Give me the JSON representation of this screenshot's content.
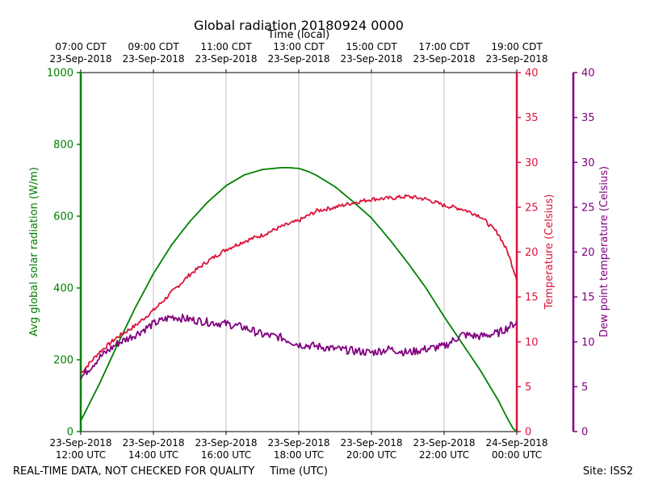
{
  "chart_data": {
    "type": "line",
    "title": "Global radiation 20180924 0000",
    "top_axis_label": "Time (local)",
    "xlabel": "Time (UTC)",
    "footer_left": "REAL-TIME DATA, NOT CHECKED FOR QUALITY",
    "footer_right": "Site: ISS2",
    "x_range_hours_utc": [
      12,
      24
    ],
    "x_ticks": [
      {
        "hour": 12,
        "utc_date": "23-Sep-2018",
        "utc_time": "12:00 UTC",
        "local_time": "07:00 CDT",
        "local_date": "23-Sep-2018"
      },
      {
        "hour": 14,
        "utc_date": "23-Sep-2018",
        "utc_time": "14:00 UTC",
        "local_time": "09:00 CDT",
        "local_date": "23-Sep-2018"
      },
      {
        "hour": 16,
        "utc_date": "23-Sep-2018",
        "utc_time": "16:00 UTC",
        "local_time": "11:00 CDT",
        "local_date": "23-Sep-2018"
      },
      {
        "hour": 18,
        "utc_date": "23-Sep-2018",
        "utc_time": "18:00 UTC",
        "local_time": "13:00 CDT",
        "local_date": "23-Sep-2018"
      },
      {
        "hour": 20,
        "utc_date": "23-Sep-2018",
        "utc_time": "20:00 UTC",
        "local_time": "15:00 CDT",
        "local_date": "23-Sep-2018"
      },
      {
        "hour": 22,
        "utc_date": "23-Sep-2018",
        "utc_time": "22:00 UTC",
        "local_time": "17:00 CDT",
        "local_date": "23-Sep-2018"
      },
      {
        "hour": 24,
        "utc_date": "24-Sep-2018",
        "utc_time": "00:00 UTC",
        "local_time": "19:00 CDT",
        "local_date": "23-Sep-2018"
      }
    ],
    "axes": {
      "radiation": {
        "label": "Avg global solar radiation (W/m)",
        "ylim": [
          0,
          1000
        ],
        "ticks": [
          0,
          200,
          400,
          600,
          800,
          1000
        ],
        "color": "#008000"
      },
      "temperature": {
        "label": "Temperature (Celsius)",
        "ylim": [
          0,
          40
        ],
        "ticks": [
          0,
          5,
          10,
          15,
          20,
          25,
          30,
          35,
          40
        ],
        "color": "#dc143c"
      },
      "dewpoint": {
        "label": "Dew point temperature (Celsius)",
        "ylim": [
          0,
          40
        ],
        "ticks": [
          0,
          5,
          10,
          15,
          20,
          25,
          30,
          35,
          40
        ],
        "color": "#800080"
      }
    },
    "series": [
      {
        "name": "Global solar radiation",
        "axis": "radiation",
        "x": [
          12,
          12.5,
          13,
          13.5,
          14,
          14.5,
          15,
          15.5,
          16,
          16.5,
          17,
          17.5,
          17.75,
          18,
          18.25,
          18.5,
          19,
          19.5,
          20,
          20.5,
          21,
          21.5,
          22,
          22.5,
          23,
          23.5,
          23.75,
          23.9,
          24
        ],
        "values": [
          30,
          130,
          240,
          345,
          440,
          520,
          585,
          640,
          685,
          715,
          730,
          735,
          735,
          733,
          725,
          713,
          682,
          640,
          595,
          535,
          470,
          400,
          320,
          245,
          170,
          85,
          35,
          8,
          0
        ]
      },
      {
        "name": "Temperature",
        "axis": "temperature",
        "x": [
          12,
          12.5,
          13,
          13.5,
          14,
          14.5,
          15,
          15.5,
          16,
          16.5,
          17,
          17.5,
          18,
          18.5,
          19,
          19.5,
          20,
          20.5,
          21,
          21.5,
          22,
          22.5,
          23,
          23.5,
          23.75,
          24
        ],
        "values": [
          6.5,
          8.8,
          10.5,
          11.8,
          13.5,
          15.5,
          17.5,
          19.0,
          20.3,
          21.2,
          21.9,
          22.8,
          23.5,
          24.6,
          25.0,
          25.5,
          25.9,
          26.0,
          26.2,
          25.9,
          25.2,
          24.8,
          24.0,
          22.0,
          20.0,
          17.0
        ]
      },
      {
        "name": "Dew point temperature",
        "axis": "dewpoint",
        "x": [
          12,
          12.5,
          13,
          13.5,
          14,
          14.5,
          15,
          15.5,
          16,
          16.5,
          17,
          17.5,
          18,
          18.5,
          19,
          19.5,
          20,
          20.5,
          21,
          21.5,
          22,
          22.5,
          23,
          23.5,
          24
        ],
        "values": [
          6.0,
          8.2,
          9.8,
          10.8,
          12.0,
          12.8,
          12.5,
          12.2,
          12.0,
          11.6,
          10.8,
          10.5,
          9.7,
          9.5,
          9.2,
          9.0,
          8.8,
          9.2,
          8.8,
          9.2,
          9.5,
          10.8,
          10.6,
          11.0,
          12.2
        ]
      }
    ]
  }
}
